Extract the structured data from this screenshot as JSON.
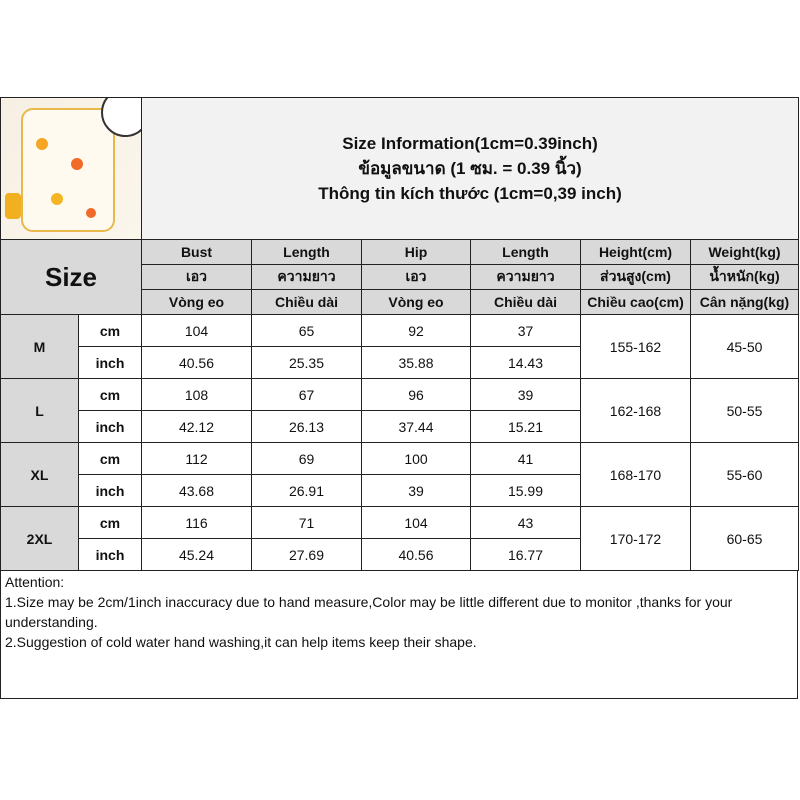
{
  "title": {
    "line1": "Size Information(1cm=0.39inch)",
    "line2": "ข้อมูลขนาด (1 ซม. = 0.39 นิ้ว)",
    "line3": "Thông tin kích thước (1cm=0,39 inch)"
  },
  "size_label": "Size",
  "headers": [
    [
      "Bust",
      "Length",
      "Hip",
      "Length",
      "Height(cm)",
      "Weight(kg)"
    ],
    [
      "เอว",
      "ความยาว",
      "เอว",
      "ความยาว",
      "ส่วนสูง(cm)",
      "น้ำหนัก(kg)"
    ],
    [
      "Vòng eo",
      "Chiều dài",
      "Vòng eo",
      "Chiều dài",
      "Chiều cao(cm)",
      "Cân nặng(kg)"
    ]
  ],
  "units": {
    "cm": "cm",
    "inch": "inch"
  },
  "rows": [
    {
      "size": "M",
      "cm": [
        "104",
        "65",
        "92",
        "37"
      ],
      "inch": [
        "40.56",
        "25.35",
        "35.88",
        "14.43"
      ],
      "height": "155-162",
      "weight": "45-50"
    },
    {
      "size": "L",
      "cm": [
        "108",
        "67",
        "96",
        "39"
      ],
      "inch": [
        "42.12",
        "26.13",
        "37.44",
        "15.21"
      ],
      "height": "162-168",
      "weight": "50-55"
    },
    {
      "size": "XL",
      "cm": [
        "112",
        "69",
        "100",
        "41"
      ],
      "inch": [
        "43.68",
        "26.91",
        "39",
        "15.99"
      ],
      "height": "168-170",
      "weight": "55-60"
    },
    {
      "size": "2XL",
      "cm": [
        "116",
        "71",
        "104",
        "43"
      ],
      "inch": [
        "45.24",
        "27.69",
        "40.56",
        "16.77"
      ],
      "height": "170-172",
      "weight": "60-65"
    }
  ],
  "attention": [
    "Attention:",
    "1.Size may be 2cm/1inch inaccuracy due to hand measure,Color may be little different due to monitor ,thanks for your understanding.",
    "2.Suggestion of cold water hand washing,it can help items keep their shape."
  ]
}
